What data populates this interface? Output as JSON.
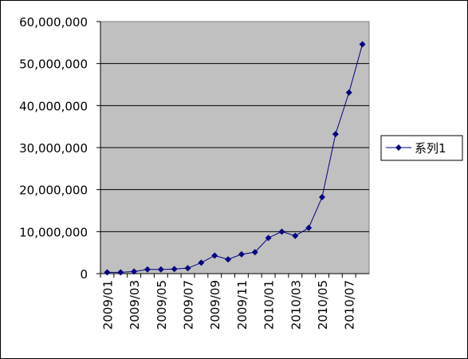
{
  "chart_data": {
    "type": "line",
    "categories": [
      "2009/01",
      null,
      "2009/03",
      null,
      "2009/05",
      null,
      "2009/07",
      null,
      "2009/09",
      null,
      "2009/11",
      null,
      "2010/01",
      null,
      "2010/03",
      null,
      "2010/05",
      null,
      "2010/07",
      null
    ],
    "series": [
      {
        "name": "系列1",
        "color": "#000080",
        "values": [
          300000,
          300000,
          500000,
          1000000,
          1000000,
          1100000,
          1300000,
          2600000,
          4300000,
          3400000,
          4600000,
          5100000,
          8500000,
          10000000,
          9000000,
          10900000,
          18200000,
          33200000,
          43100000,
          54600000
        ]
      }
    ],
    "ylim": [
      0,
      60000000
    ],
    "yticks": [
      0,
      {
        "value": 10000000,
        "label": "10,000,000"
      },
      {
        "value": 20000000,
        "label": "20,000,000"
      },
      {
        "value": 30000000,
        "label": "30,000,000"
      },
      {
        "value": 40000000,
        "label": "40,000,000"
      },
      {
        "value": 50000000,
        "label": "50,000,000"
      },
      {
        "value": 60000000,
        "label": "60,000,000"
      }
    ],
    "grid": true,
    "legend": "right"
  }
}
